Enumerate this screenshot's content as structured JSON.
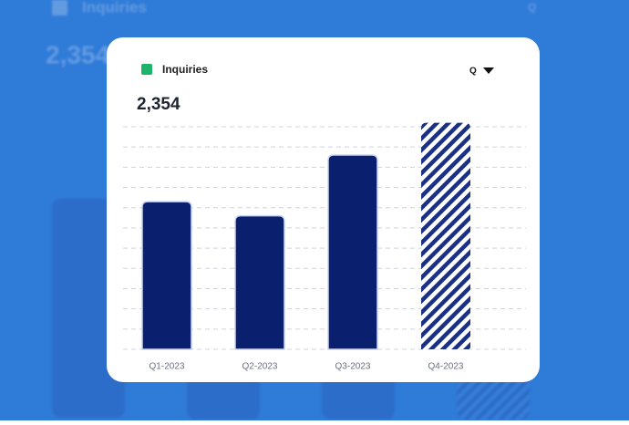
{
  "chart_data": {
    "type": "bar",
    "title": "Inquiries",
    "value_label": "2,354",
    "period_selector": "Q",
    "legend_color": "#1db36b",
    "categories": [
      "Q1-2023",
      "Q2-2023",
      "Q3-2023",
      "Q4-2023"
    ],
    "values": [
      7.3,
      6.6,
      9.6,
      11.2
    ],
    "patterns": [
      "solid",
      "solid",
      "solid",
      "hatched"
    ],
    "color": "#0b1f6f",
    "ylim": [
      0,
      11
    ],
    "yticks": [
      0,
      1,
      2,
      3,
      4,
      5,
      6,
      7,
      8,
      9,
      10,
      11
    ],
    "grid": true
  }
}
